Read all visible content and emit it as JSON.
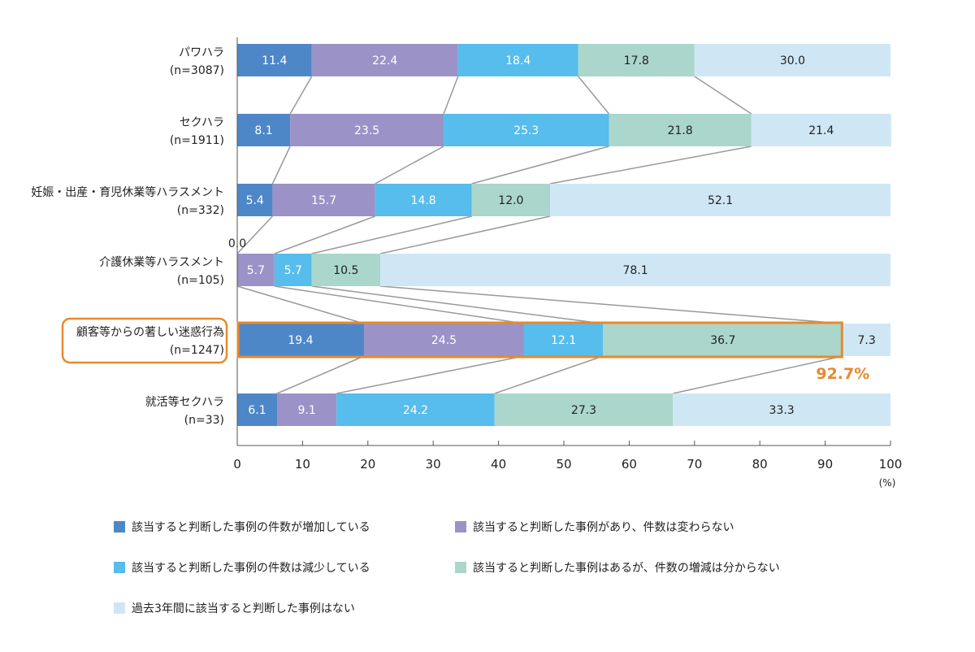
{
  "chart_data": {
    "type": "bar",
    "orientation": "horizontal",
    "stacked": true,
    "categories": [
      {
        "name": "パワハラ",
        "n": "(n=3087)"
      },
      {
        "name": "セクハラ",
        "n": "(n=1911)"
      },
      {
        "name": "妊娠・出産・育児休業等ハラスメント",
        "n": "(n=332)"
      },
      {
        "name": "介護休業等ハラスメント",
        "n": "(n=105)"
      },
      {
        "name": "顧客等からの著しい迷惑行為",
        "n": "(n=1247)"
      },
      {
        "name": "就活等セクハラ",
        "n": "(n=33)"
      }
    ],
    "series": [
      {
        "name": "該当すると判断した事例の件数が増加している",
        "color": "#4e87c8",
        "text_color": "#ffffff",
        "values": [
          11.4,
          8.1,
          5.4,
          0.0,
          19.4,
          6.1
        ]
      },
      {
        "name": "該当すると判断した事例があり、件数は変わらない",
        "color": "#9b92c8",
        "text_color": "#ffffff",
        "values": [
          22.4,
          23.5,
          15.7,
          5.7,
          24.5,
          9.1
        ]
      },
      {
        "name": "該当すると判断した事例の件数は減少している",
        "color": "#56bdec",
        "text_color": "#ffffff",
        "values": [
          18.4,
          25.3,
          14.8,
          5.7,
          12.1,
          24.2
        ]
      },
      {
        "name": "該当すると判断した事例はあるが、件数の増減は分からない",
        "color": "#aad6cb",
        "text_color": "#222222",
        "values": [
          17.8,
          21.8,
          12.0,
          10.5,
          36.7,
          27.3
        ]
      },
      {
        "name": "過去3年間に該当すると判断した事例はない",
        "color": "#cfe7f5",
        "text_color": "#222222",
        "values": [
          30.0,
          21.4,
          52.1,
          78.1,
          7.3,
          33.3
        ]
      }
    ],
    "value_labels": [
      [
        "11.4",
        "22.4",
        "18.4",
        "17.8",
        "30.0"
      ],
      [
        "8.1",
        "23.5",
        "25.3",
        "21.8",
        "21.4"
      ],
      [
        "5.4",
        "15.7",
        "14.8",
        "12.0",
        "52.1"
      ],
      [
        "0.0",
        "5.7",
        "5.7",
        "10.5",
        "78.1"
      ],
      [
        "19.4",
        "24.5",
        "12.1",
        "36.7",
        "7.3"
      ],
      [
        "6.1",
        "9.1",
        "24.2",
        "27.3",
        "33.3"
      ]
    ],
    "highlight": {
      "category_index": 4,
      "label": "92.7%",
      "color": "#e8892e"
    },
    "xlim": [
      0,
      100
    ],
    "xticks": [
      "0",
      "10",
      "20",
      "30",
      "40",
      "50",
      "60",
      "70",
      "80",
      "90",
      "100"
    ],
    "x_unit": "(%)",
    "legend_position": "bottom",
    "connector_lines": true,
    "grid": false
  }
}
